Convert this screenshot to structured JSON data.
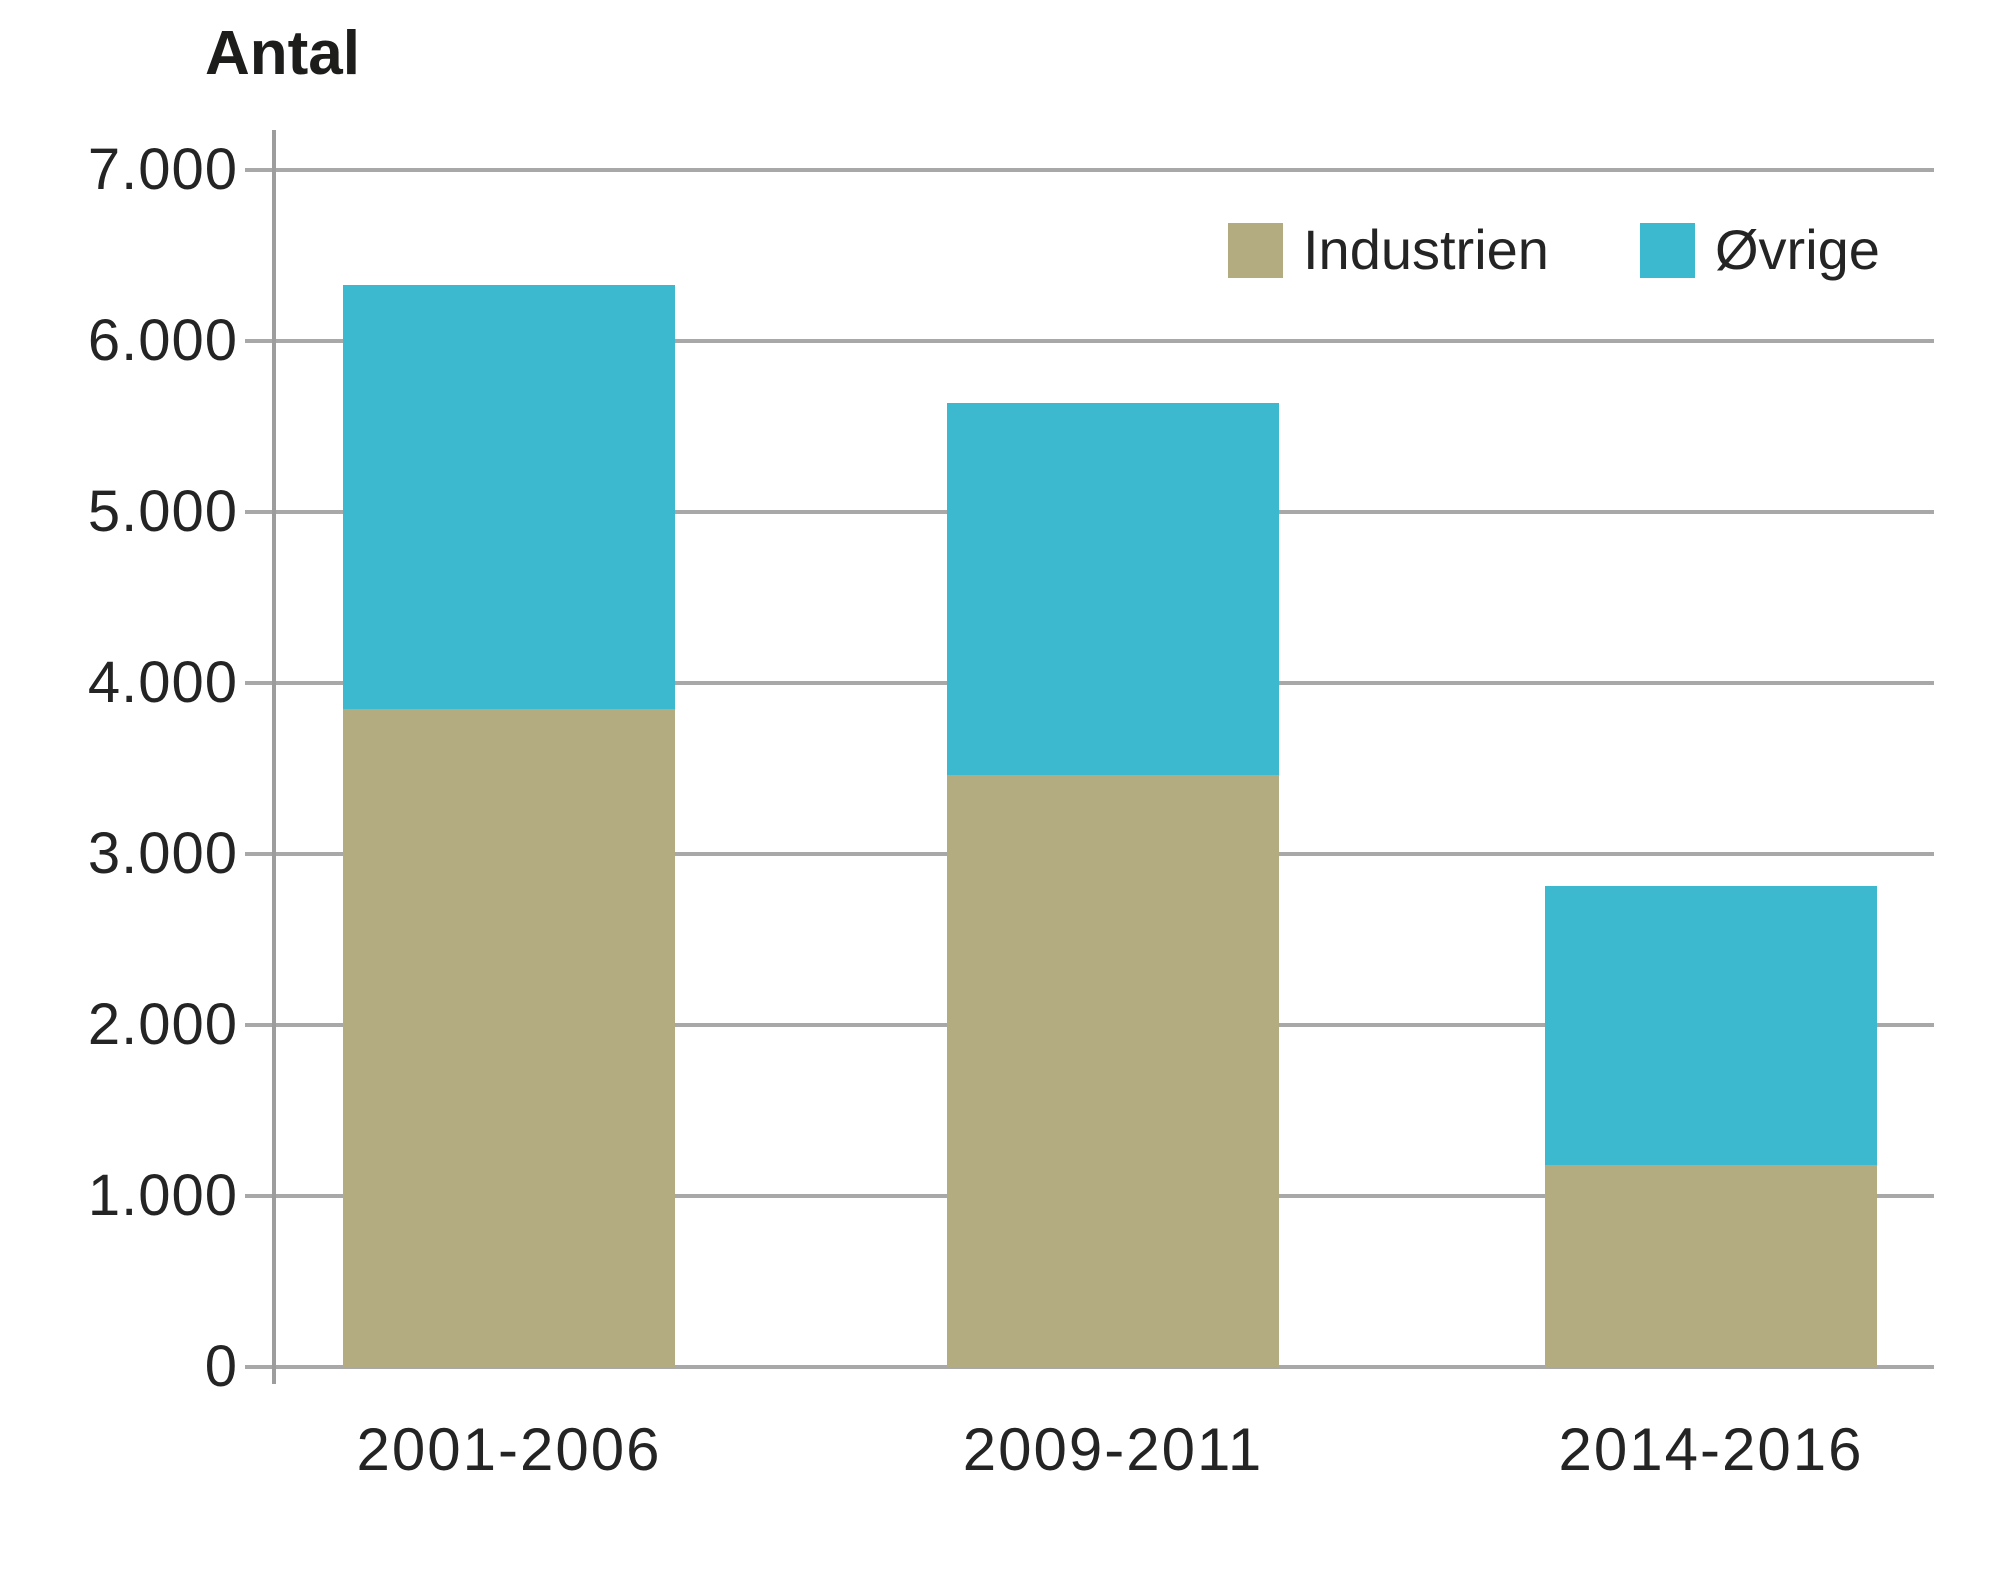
{
  "chart_data": {
    "type": "bar",
    "stacked": true,
    "title": "Antal",
    "categories": [
      "2001-2006",
      "2009-2011",
      "2014-2016"
    ],
    "series": [
      {
        "name": "Industrien",
        "color": "#b3ac81",
        "values": [
          3850,
          3460,
          1180
        ]
      },
      {
        "name": "Øvrige",
        "color": "#3cb9ce",
        "values": [
          2480,
          2180,
          1630
        ]
      }
    ],
    "stack_totals": [
      6330,
      5640,
      2810
    ],
    "xlabel": "",
    "ylabel": "Antal",
    "ylim": [
      0,
      7000
    ],
    "ytick_step": 1000,
    "ytick_labels": [
      "0",
      "1.000",
      "2.000",
      "3.000",
      "4.000",
      "5.000",
      "6.000",
      "7.000"
    ],
    "grid": true,
    "legend_position": "top-right",
    "legend_entries": [
      "Industrien",
      "Øvrige"
    ]
  },
  "colors": {
    "industrien": "#b3ac81",
    "ovrige": "#3cb9ce",
    "gridline": "#a8a8a8",
    "axis": "#9d9d9d",
    "text": "#242424",
    "title_text": "#1d1d1b",
    "background": "#ffffff"
  }
}
